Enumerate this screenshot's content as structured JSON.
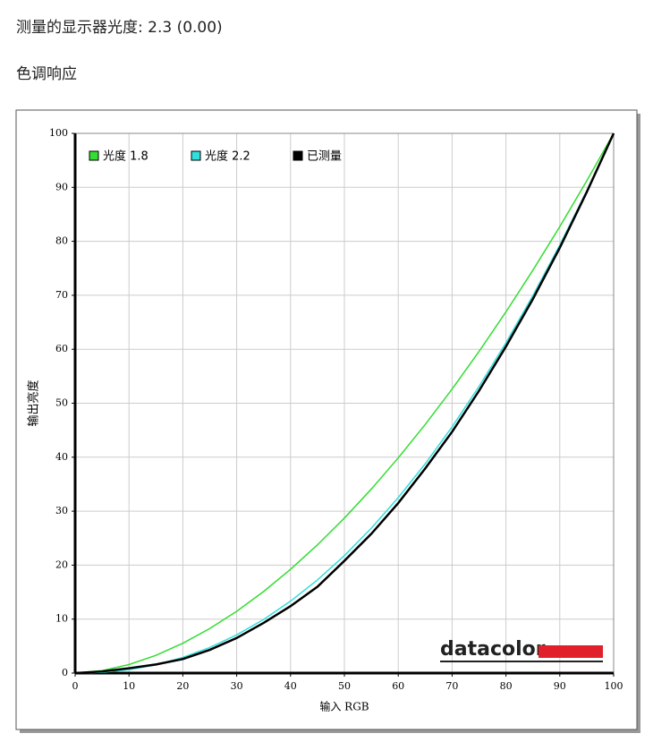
{
  "header": {
    "gamma_line": "测量的显示器光度:  2.3 (0.00)",
    "section_title": "色调响应"
  },
  "chart_data": {
    "type": "line",
    "x_label": "输入 RGB",
    "y_label": "输出亮度",
    "watermark": "datacolor",
    "x": [
      0,
      5,
      10,
      15,
      20,
      25,
      30,
      35,
      40,
      45,
      50,
      55,
      60,
      65,
      70,
      75,
      80,
      85,
      90,
      95,
      100
    ],
    "series": [
      {
        "name": "光度 1.8",
        "color": "#33dd33",
        "values": [
          0,
          0.46,
          1.58,
          3.29,
          5.52,
          8.25,
          11.45,
          15.11,
          19.22,
          23.76,
          28.72,
          34.09,
          39.87,
          46.05,
          52.62,
          59.58,
          66.92,
          74.64,
          82.72,
          91.18,
          100
        ]
      },
      {
        "name": "光度 2.2",
        "color": "#33dddd",
        "values": [
          0,
          0.14,
          0.63,
          1.54,
          2.9,
          4.74,
          7.08,
          9.93,
          13.32,
          17.26,
          21.76,
          26.84,
          32.5,
          38.76,
          45.62,
          53.1,
          61.2,
          69.94,
          79.31,
          89.33,
          100
        ]
      },
      {
        "name": "已测量",
        "color": "#000000",
        "values": [
          0,
          0.3,
          0.9,
          1.6,
          2.6,
          4.3,
          6.5,
          9.3,
          12.4,
          16.0,
          20.8,
          25.8,
          31.5,
          37.9,
          44.7,
          52.3,
          60.5,
          69.3,
          78.8,
          89.1,
          100
        ]
      }
    ],
    "xlim": [
      0,
      100
    ],
    "xticks": [
      0,
      10,
      20,
      30,
      40,
      50,
      60,
      70,
      80,
      90,
      100
    ],
    "ylim": [
      0,
      100
    ],
    "yticks": [
      0,
      10,
      20,
      30,
      40,
      50,
      60,
      70,
      80,
      90,
      100
    ],
    "grid": true,
    "legend": "top-left"
  }
}
